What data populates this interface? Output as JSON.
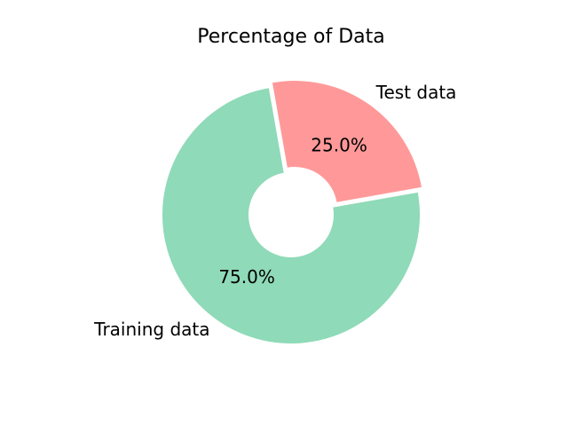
{
  "chart_data": {
    "type": "pie",
    "title": "Percentage of Data",
    "donut": true,
    "categories": [
      "Training data",
      "Test data"
    ],
    "values": [
      75.0,
      25.0
    ],
    "percent_labels": [
      "75.0%",
      "25.0%"
    ],
    "colors": [
      "#8fdab8",
      "#ff9999"
    ],
    "exploded": [
      false,
      true
    ],
    "start_angle_deg": 100,
    "direction": "counterclockwise"
  }
}
